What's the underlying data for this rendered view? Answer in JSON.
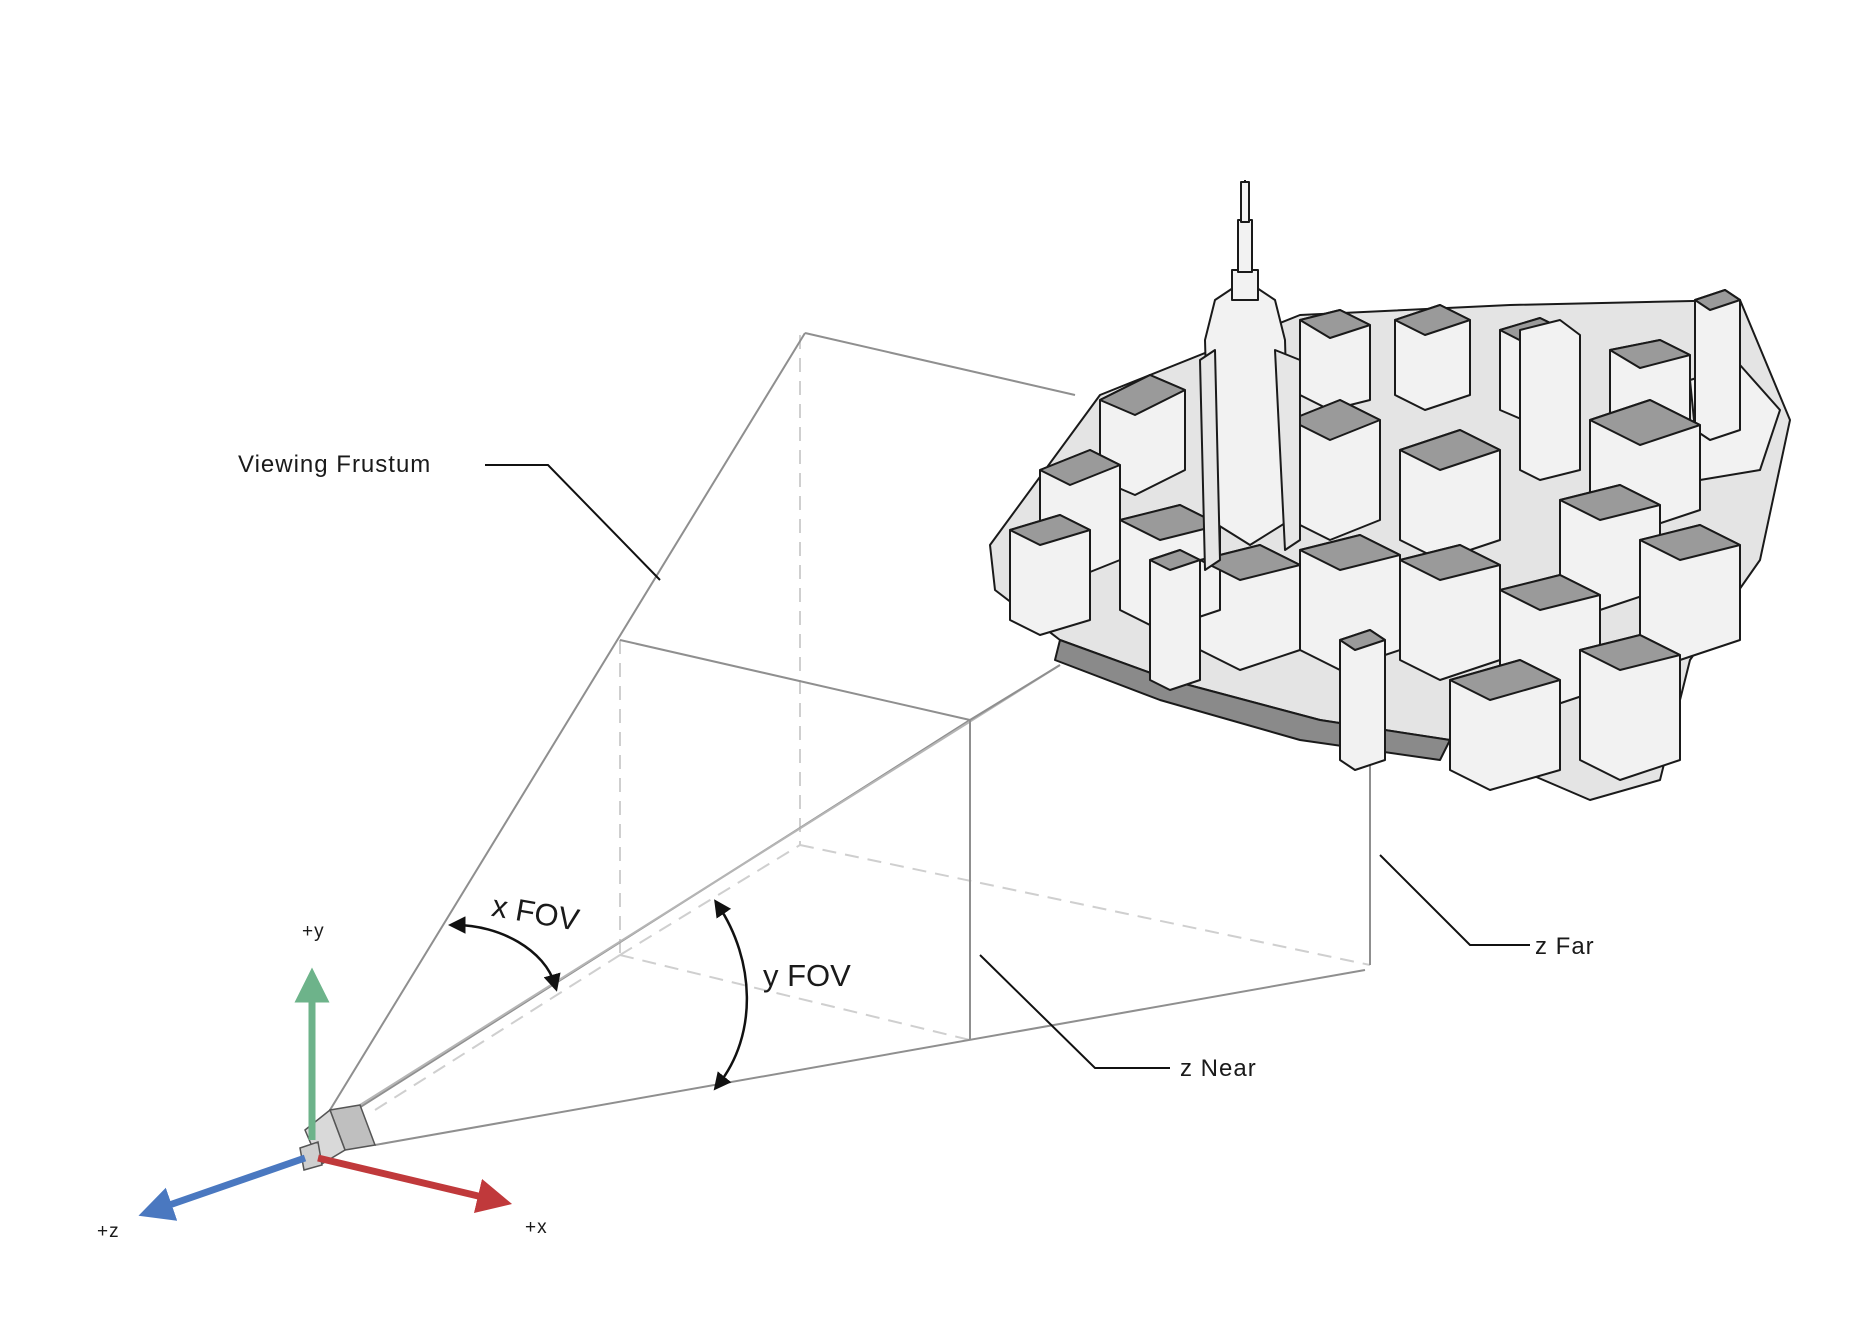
{
  "labels": {
    "viewing_frustum": "Viewing Frustum",
    "x_fov": "x FOV",
    "y_fov": "y FOV",
    "z_near": "z Near",
    "z_far": "z Far",
    "axis_y": "+y",
    "axis_x": "+x",
    "axis_z": "+z"
  },
  "colors": {
    "axis_y": "#6db38a",
    "axis_x": "#c0393b",
    "axis_z": "#4a78c0",
    "frustum_line": "#8a8a8a",
    "hidden_line": "#c8c8c8",
    "building_fill": "#f2f2f2",
    "building_roof": "#9a9a9a",
    "building_stroke": "#1a1a1a"
  },
  "icons": {
    "camera": "camera-icon",
    "city": "city-model-icon"
  }
}
